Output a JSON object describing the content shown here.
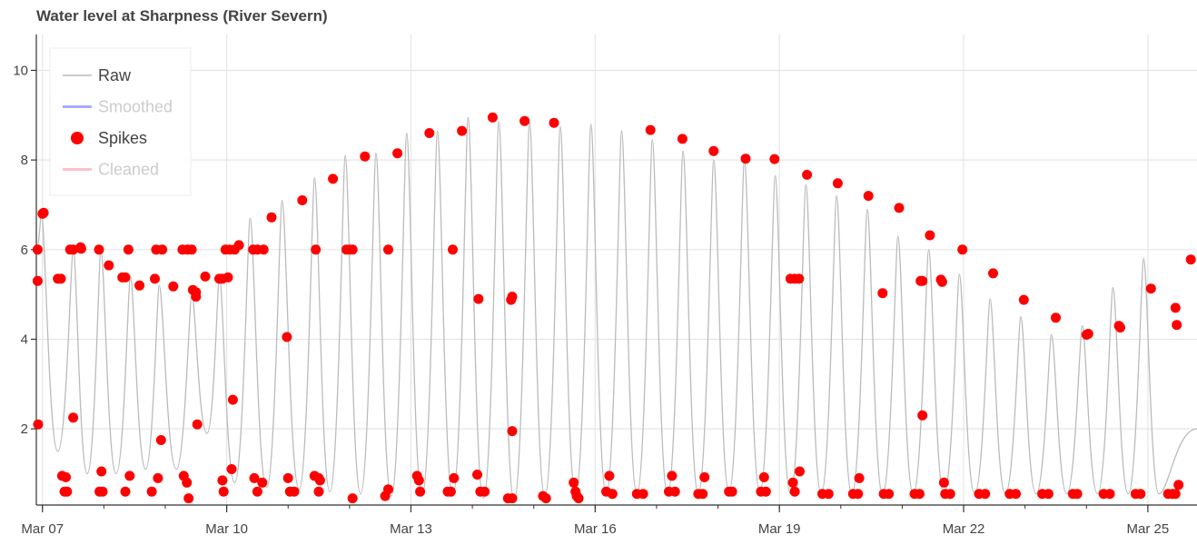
{
  "chart_data": {
    "type": "line",
    "title": "Water level at Sharpness (River Severn)",
    "xlabel": "",
    "ylabel": "",
    "x_ticks": [
      "Mar 07",
      "Mar 10",
      "Mar 13",
      "Mar 16",
      "Mar 19",
      "Mar 22",
      "Mar 25"
    ],
    "x_tick_values": [
      7,
      10,
      13,
      16,
      19,
      22,
      25
    ],
    "xlim": [
      6.9,
      25.8
    ],
    "y_ticks": [
      "2",
      "4",
      "6",
      "8",
      "10"
    ],
    "y_tick_values": [
      2,
      4,
      6,
      8,
      10
    ],
    "ylim": [
      0.3,
      10.8
    ],
    "grid": true,
    "legend_position": "top-left",
    "legend": [
      {
        "name": "Raw",
        "color": "#bbbbbb",
        "muted": false,
        "marker": "line"
      },
      {
        "name": "Smoothed",
        "color": "#aaaaff",
        "muted": true,
        "marker": "line"
      },
      {
        "name": "Spikes",
        "color": "#ff0000",
        "muted": false,
        "marker": "circle"
      },
      {
        "name": "Cleaned",
        "color": "#ffc0cb",
        "muted": true,
        "marker": "line"
      }
    ],
    "series": [
      {
        "name": "Raw",
        "color": "#bbbbbb",
        "tide_highs": [
          [
            6.98,
            6.8
          ],
          [
            7.5,
            6.0
          ],
          [
            7.95,
            6.0
          ],
          [
            8.43,
            5.4
          ],
          [
            8.9,
            5.2
          ],
          [
            9.43,
            5.0
          ],
          [
            9.88,
            5.4
          ],
          [
            10.38,
            6.7
          ],
          [
            10.9,
            7.1
          ],
          [
            11.43,
            7.6
          ],
          [
            11.93,
            8.1
          ],
          [
            12.43,
            8.15
          ],
          [
            12.93,
            8.6
          ],
          [
            13.43,
            8.65
          ],
          [
            13.93,
            8.95
          ],
          [
            14.43,
            8.85
          ],
          [
            14.93,
            8.85
          ],
          [
            15.43,
            8.75
          ],
          [
            15.93,
            8.8
          ],
          [
            16.43,
            8.65
          ],
          [
            16.93,
            8.45
          ],
          [
            17.43,
            8.2
          ],
          [
            17.93,
            8.0
          ],
          [
            18.43,
            8.0
          ],
          [
            18.93,
            7.65
          ],
          [
            19.43,
            7.45
          ],
          [
            19.93,
            7.2
          ],
          [
            20.43,
            6.9
          ],
          [
            20.93,
            6.3
          ],
          [
            21.43,
            6.0
          ],
          [
            21.93,
            5.45
          ],
          [
            22.43,
            4.9
          ],
          [
            22.93,
            4.5
          ],
          [
            23.43,
            4.1
          ],
          [
            23.93,
            4.3
          ],
          [
            24.43,
            5.15
          ],
          [
            24.93,
            5.8
          ]
        ],
        "tide_lows": [
          [
            7.25,
            1.5
          ],
          [
            7.73,
            1.0
          ],
          [
            8.2,
            1.0
          ],
          [
            8.68,
            1.1
          ],
          [
            9.18,
            1.1
          ],
          [
            9.68,
            1.9
          ],
          [
            10.13,
            0.8
          ],
          [
            10.65,
            0.7
          ],
          [
            11.18,
            0.65
          ],
          [
            11.68,
            0.6
          ],
          [
            12.18,
            0.55
          ],
          [
            12.68,
            0.5
          ],
          [
            13.18,
            0.5
          ],
          [
            13.68,
            0.5
          ],
          [
            14.18,
            0.45
          ],
          [
            14.68,
            0.4
          ],
          [
            15.18,
            0.5
          ],
          [
            15.68,
            0.55
          ],
          [
            16.18,
            0.55
          ],
          [
            16.68,
            0.55
          ],
          [
            17.18,
            0.55
          ],
          [
            17.68,
            0.55
          ],
          [
            18.18,
            0.6
          ],
          [
            18.68,
            0.6
          ],
          [
            19.18,
            0.55
          ],
          [
            19.68,
            0.55
          ],
          [
            20.18,
            0.55
          ],
          [
            20.68,
            0.55
          ],
          [
            21.18,
            0.55
          ],
          [
            21.68,
            0.55
          ],
          [
            22.18,
            0.55
          ],
          [
            22.68,
            0.55
          ],
          [
            23.18,
            0.55
          ],
          [
            23.68,
            0.55
          ],
          [
            24.18,
            0.55
          ],
          [
            24.68,
            0.55
          ],
          [
            25.18,
            0.55
          ],
          [
            25.8,
            2.0
          ]
        ]
      },
      {
        "name": "Spikes",
        "color": "#ff0000",
        "points": [
          [
            6.92,
            6.0
          ],
          [
            6.92,
            5.3
          ],
          [
            6.93,
            2.1
          ],
          [
            7.0,
            6.8
          ],
          [
            7.02,
            6.82
          ],
          [
            7.25,
            5.35
          ],
          [
            7.3,
            5.35
          ],
          [
            7.32,
            0.95
          ],
          [
            7.38,
            0.92
          ],
          [
            7.36,
            0.6
          ],
          [
            7.4,
            0.6
          ],
          [
            7.45,
            6.0
          ],
          [
            7.5,
            6.0
          ],
          [
            7.5,
            2.25
          ],
          [
            7.62,
            6.05
          ],
          [
            7.63,
            6.02
          ],
          [
            7.93,
            0.6
          ],
          [
            7.98,
            0.6
          ],
          [
            7.92,
            6.0
          ],
          [
            7.96,
            1.05
          ],
          [
            8.08,
            5.65
          ],
          [
            8.3,
            5.38
          ],
          [
            8.35,
            5.38
          ],
          [
            8.35,
            0.6
          ],
          [
            8.4,
            6.0
          ],
          [
            8.42,
            0.95
          ],
          [
            8.58,
            5.2
          ],
          [
            8.78,
            0.6
          ],
          [
            8.83,
            5.35
          ],
          [
            8.85,
            6.0
          ],
          [
            8.88,
            0.9
          ],
          [
            8.93,
            1.75
          ],
          [
            8.95,
            6.0
          ],
          [
            9.13,
            5.18
          ],
          [
            9.28,
            6.0
          ],
          [
            9.3,
            0.95
          ],
          [
            9.35,
            0.8
          ],
          [
            9.36,
            6.0
          ],
          [
            9.38,
            0.45
          ],
          [
            9.43,
            6.0
          ],
          [
            9.45,
            5.1
          ],
          [
            9.5,
            4.95
          ],
          [
            9.5,
            5.05
          ],
          [
            9.52,
            2.1
          ],
          [
            9.65,
            5.4
          ],
          [
            9.88,
            5.35
          ],
          [
            9.93,
            5.35
          ],
          [
            9.93,
            0.85
          ],
          [
            9.95,
            0.6
          ],
          [
            9.98,
            6.0
          ],
          [
            10.02,
            5.38
          ],
          [
            10.05,
            6.0
          ],
          [
            10.08,
            1.1
          ],
          [
            10.1,
            2.65
          ],
          [
            10.13,
            6.0
          ],
          [
            10.2,
            6.1
          ],
          [
            10.43,
            6.0
          ],
          [
            10.45,
            0.9
          ],
          [
            10.5,
            0.6
          ],
          [
            10.5,
            6.0
          ],
          [
            10.58,
            0.8
          ],
          [
            10.6,
            6.0
          ],
          [
            10.73,
            6.72
          ],
          [
            10.98,
            4.05
          ],
          [
            11.0,
            0.9
          ],
          [
            11.03,
            0.6
          ],
          [
            11.1,
            0.6
          ],
          [
            11.23,
            7.1
          ],
          [
            11.43,
            0.95
          ],
          [
            11.45,
            6.0
          ],
          [
            11.5,
            0.9
          ],
          [
            11.52,
            0.85
          ],
          [
            11.5,
            0.6
          ],
          [
            11.73,
            7.58
          ],
          [
            11.95,
            6.0
          ],
          [
            12.0,
            6.0
          ],
          [
            12.05,
            0.45
          ],
          [
            12.05,
            6.0
          ],
          [
            12.25,
            8.08
          ],
          [
            12.58,
            0.5
          ],
          [
            12.63,
            0.65
          ],
          [
            12.63,
            6.0
          ],
          [
            12.78,
            8.15
          ],
          [
            13.1,
            0.95
          ],
          [
            13.13,
            0.85
          ],
          [
            13.15,
            0.6
          ],
          [
            13.3,
            8.6
          ],
          [
            13.6,
            0.6
          ],
          [
            13.65,
            0.6
          ],
          [
            13.68,
            6.0
          ],
          [
            13.7,
            0.9
          ],
          [
            13.83,
            8.65
          ],
          [
            14.08,
            0.98
          ],
          [
            14.1,
            4.9
          ],
          [
            14.13,
            0.6
          ],
          [
            14.2,
            0.6
          ],
          [
            14.33,
            8.95
          ],
          [
            14.58,
            0.45
          ],
          [
            14.63,
            4.88
          ],
          [
            14.65,
            4.95
          ],
          [
            14.65,
            1.95
          ],
          [
            14.65,
            0.45
          ],
          [
            14.85,
            8.87
          ],
          [
            15.15,
            0.5
          ],
          [
            15.2,
            0.45
          ],
          [
            15.33,
            8.83
          ],
          [
            15.65,
            0.8
          ],
          [
            15.68,
            0.6
          ],
          [
            15.7,
            0.5
          ],
          [
            15.73,
            0.45
          ],
          [
            16.18,
            0.6
          ],
          [
            16.23,
            0.95
          ],
          [
            16.28,
            0.55
          ],
          [
            16.68,
            0.55
          ],
          [
            16.78,
            0.55
          ],
          [
            16.9,
            8.67
          ],
          [
            17.2,
            0.6
          ],
          [
            17.25,
            0.95
          ],
          [
            17.3,
            0.6
          ],
          [
            17.42,
            8.47
          ],
          [
            17.68,
            0.55
          ],
          [
            17.75,
            0.55
          ],
          [
            17.78,
            0.92
          ],
          [
            17.93,
            8.2
          ],
          [
            18.18,
            0.6
          ],
          [
            18.23,
            0.6
          ],
          [
            18.45,
            8.03
          ],
          [
            18.7,
            0.6
          ],
          [
            18.75,
            0.92
          ],
          [
            18.78,
            0.6
          ],
          [
            18.92,
            8.02
          ],
          [
            19.18,
            5.35
          ],
          [
            19.22,
            0.8
          ],
          [
            19.25,
            5.35
          ],
          [
            19.25,
            0.6
          ],
          [
            19.32,
            5.35
          ],
          [
            19.33,
            1.05
          ],
          [
            19.45,
            7.67
          ],
          [
            19.7,
            0.55
          ],
          [
            19.8,
            0.55
          ],
          [
            19.95,
            7.48
          ],
          [
            20.2,
            0.55
          ],
          [
            20.28,
            0.55
          ],
          [
            20.3,
            0.9
          ],
          [
            20.45,
            7.2
          ],
          [
            20.68,
            5.03
          ],
          [
            20.7,
            0.55
          ],
          [
            20.78,
            0.55
          ],
          [
            20.95,
            6.93
          ],
          [
            21.2,
            0.55
          ],
          [
            21.28,
            0.55
          ],
          [
            21.3,
            5.3
          ],
          [
            21.33,
            5.3
          ],
          [
            21.33,
            2.3
          ],
          [
            21.45,
            6.32
          ],
          [
            21.63,
            5.33
          ],
          [
            21.65,
            5.28
          ],
          [
            21.68,
            0.8
          ],
          [
            21.7,
            0.55
          ],
          [
            21.78,
            0.55
          ],
          [
            21.98,
            6.0
          ],
          [
            22.25,
            0.55
          ],
          [
            22.35,
            0.55
          ],
          [
            22.48,
            5.47
          ],
          [
            22.75,
            0.55
          ],
          [
            22.85,
            0.55
          ],
          [
            22.98,
            4.88
          ],
          [
            23.28,
            0.55
          ],
          [
            23.38,
            0.55
          ],
          [
            23.5,
            4.48
          ],
          [
            23.78,
            0.55
          ],
          [
            23.85,
            0.55
          ],
          [
            24.0,
            4.1
          ],
          [
            24.03,
            4.12
          ],
          [
            24.28,
            0.55
          ],
          [
            24.38,
            0.55
          ],
          [
            24.53,
            4.3
          ],
          [
            24.55,
            4.26
          ],
          [
            24.8,
            0.55
          ],
          [
            24.88,
            0.55
          ],
          [
            25.05,
            5.13
          ],
          [
            25.33,
            0.55
          ],
          [
            25.4,
            0.55
          ],
          [
            25.45,
            0.55
          ],
          [
            25.45,
            4.7
          ],
          [
            25.47,
            4.32
          ],
          [
            25.5,
            0.75
          ],
          [
            25.7,
            5.78
          ]
        ]
      }
    ]
  }
}
